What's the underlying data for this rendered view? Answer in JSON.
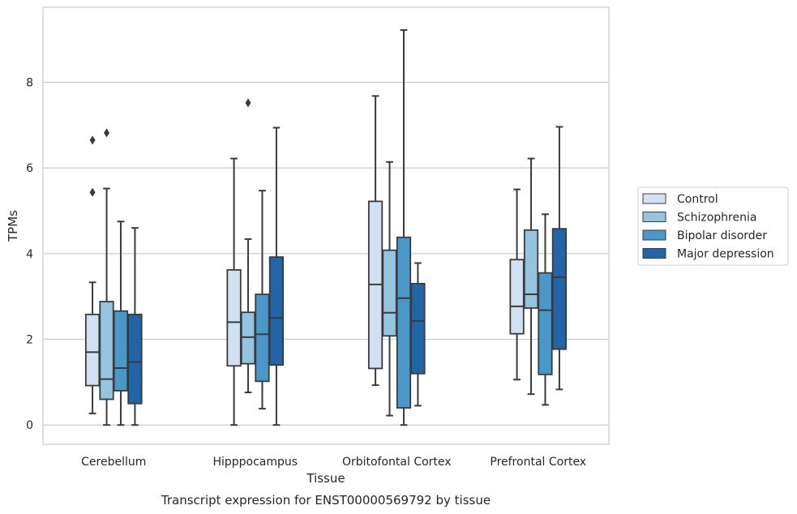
{
  "chart_data": {
    "type": "boxplot",
    "title": "Transcript expression for ENST00000569792 by tissue",
    "xlabel": "Tissue",
    "ylabel": "TPMs",
    "ylim": [
      -0.45,
      9.75
    ],
    "yticks": [
      0,
      2,
      4,
      6,
      8
    ],
    "grid": true,
    "legend_position": "right",
    "categories": [
      "Cerebellum",
      "Hipppocampus",
      "Orbitofontal Cortex",
      "Prefrontal Cortex"
    ],
    "series": [
      {
        "name": "Control",
        "color": "#d0e1f2",
        "boxes": [
          {
            "whislo": 0.27,
            "q1": 0.92,
            "med": 1.7,
            "q3": 2.58,
            "whishi": 3.33,
            "fliers": [
              5.43,
              6.65
            ]
          },
          {
            "whislo": 0.0,
            "q1": 1.38,
            "med": 2.4,
            "q3": 3.62,
            "whishi": 6.22,
            "fliers": []
          },
          {
            "whislo": 0.93,
            "q1": 1.32,
            "med": 3.28,
            "q3": 5.22,
            "whishi": 7.68,
            "fliers": []
          },
          {
            "whislo": 1.06,
            "q1": 2.13,
            "med": 2.77,
            "q3": 3.86,
            "whishi": 5.5,
            "fliers": []
          }
        ]
      },
      {
        "name": "Schizophrenia",
        "color": "#94c4df",
        "boxes": [
          {
            "whislo": 0.0,
            "q1": 0.6,
            "med": 1.07,
            "q3": 2.88,
            "whishi": 5.52,
            "fliers": [
              6.82
            ]
          },
          {
            "whislo": 0.76,
            "q1": 1.43,
            "med": 2.05,
            "q3": 2.63,
            "whishi": 4.34,
            "fliers": [
              7.52
            ]
          },
          {
            "whislo": 0.22,
            "q1": 2.08,
            "med": 2.62,
            "q3": 4.08,
            "whishi": 6.14,
            "fliers": []
          },
          {
            "whislo": 0.72,
            "q1": 2.73,
            "med": 3.05,
            "q3": 4.55,
            "whishi": 6.22,
            "fliers": []
          }
        ]
      },
      {
        "name": "Bipolar disorder",
        "color": "#4a98c9",
        "boxes": [
          {
            "whislo": 0.0,
            "q1": 0.8,
            "med": 1.33,
            "q3": 2.66,
            "whishi": 4.75,
            "fliers": []
          },
          {
            "whislo": 0.38,
            "q1": 1.02,
            "med": 2.12,
            "q3": 3.05,
            "whishi": 5.47,
            "fliers": []
          },
          {
            "whislo": 0.0,
            "q1": 0.4,
            "med": 2.96,
            "q3": 4.38,
            "whishi": 9.22,
            "fliers": []
          },
          {
            "whislo": 0.47,
            "q1": 1.18,
            "med": 2.68,
            "q3": 3.55,
            "whishi": 4.92,
            "fliers": []
          }
        ]
      },
      {
        "name": "Major depression",
        "color": "#2264a8",
        "boxes": [
          {
            "whislo": 0.0,
            "q1": 0.5,
            "med": 1.47,
            "q3": 2.58,
            "whishi": 4.6,
            "fliers": []
          },
          {
            "whislo": 0.0,
            "q1": 1.4,
            "med": 2.5,
            "q3": 3.92,
            "whishi": 6.94,
            "fliers": []
          },
          {
            "whislo": 0.45,
            "q1": 1.2,
            "med": 2.43,
            "q3": 3.3,
            "whishi": 3.78,
            "fliers": []
          },
          {
            "whislo": 0.83,
            "q1": 1.77,
            "med": 3.45,
            "q3": 4.58,
            "whishi": 6.96,
            "fliers": []
          }
        ]
      }
    ]
  }
}
